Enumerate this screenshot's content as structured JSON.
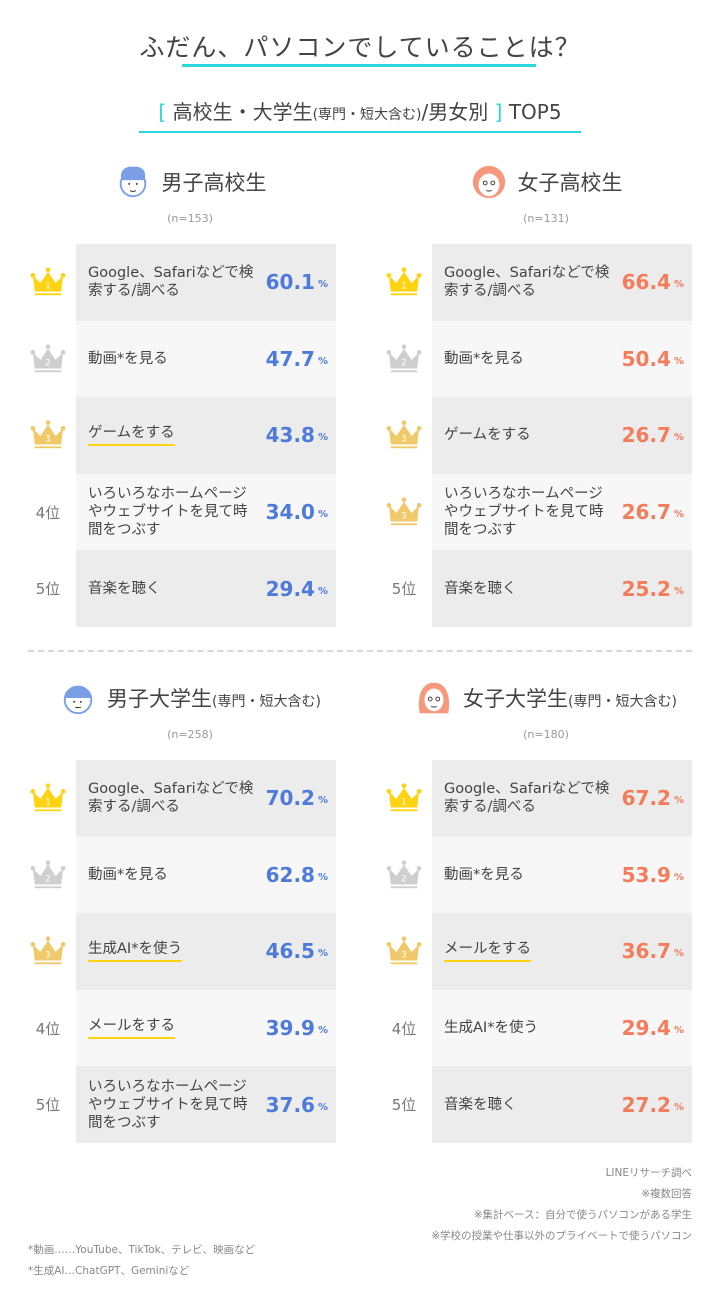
{
  "header": {
    "title": "ふだん、パソコンでしていることは？",
    "subtitle_open": "[",
    "subtitle_main": "高校生・大学生",
    "subtitle_small": "(専門・短大含む)",
    "subtitle_rest": "/男女別",
    "subtitle_close": "]",
    "subtitle_top": "TOP5"
  },
  "colors": {
    "accent_cyan": "#2ad7dc",
    "male_blue": "#4e7ad9",
    "female_orange": "#f47c5a",
    "gold": "#ffd30f",
    "silver": "#cfcfcf",
    "bronze": "#f0c96a",
    "row_dark": "#ececec",
    "row_light": "#f7f7f7"
  },
  "sections": [
    {
      "title": "男子高校生",
      "title_small": "",
      "n": "(n=153)",
      "avatar": "boy-avatar-icon",
      "color": "blue",
      "rows": [
        {
          "rank": "1",
          "rank_type": "crown-gold",
          "label": "Google、Safariなどで検索する/調べる",
          "value": "60.1",
          "underline": false
        },
        {
          "rank": "2",
          "rank_type": "crown-silver",
          "label": "動画*を見る",
          "value": "47.7",
          "underline": false
        },
        {
          "rank": "3",
          "rank_type": "crown-bronze",
          "label": "ゲームをする",
          "value": "43.8",
          "underline": true
        },
        {
          "rank": "4位",
          "rank_type": "text",
          "label": "いろいろなホームページやウェブサイトを見て時間をつぶす",
          "value": "34.0",
          "underline": false
        },
        {
          "rank": "5位",
          "rank_type": "text",
          "label": "音楽を聴く",
          "value": "29.4",
          "underline": false
        }
      ]
    },
    {
      "title": "女子高校生",
      "title_small": "",
      "n": "(n=131)",
      "avatar": "girl-avatar-icon",
      "color": "orange",
      "rows": [
        {
          "rank": "1",
          "rank_type": "crown-gold",
          "label": "Google、Safariなどで検索する/調べる",
          "value": "66.4",
          "underline": false
        },
        {
          "rank": "2",
          "rank_type": "crown-silver",
          "label": "動画*を見る",
          "value": "50.4",
          "underline": false
        },
        {
          "rank": "3",
          "rank_type": "crown-bronze",
          "label": "ゲームをする",
          "value": "26.7",
          "underline": false
        },
        {
          "rank": "3",
          "rank_type": "crown-bronze",
          "label": "いろいろなホームページやウェブサイトを見て時間をつぶす",
          "value": "26.7",
          "underline": false
        },
        {
          "rank": "5位",
          "rank_type": "text",
          "label": "音楽を聴く",
          "value": "25.2",
          "underline": false
        }
      ]
    },
    {
      "title": "男子大学生",
      "title_small": "(専門・短大含む)",
      "n": "(n=258)",
      "avatar": "male-student-avatar-icon",
      "color": "blue",
      "rows": [
        {
          "rank": "1",
          "rank_type": "crown-gold",
          "label": "Google、Safariなどで検索する/調べる",
          "value": "70.2",
          "underline": false
        },
        {
          "rank": "2",
          "rank_type": "crown-silver",
          "label": "動画*を見る",
          "value": "62.8",
          "underline": false
        },
        {
          "rank": "3",
          "rank_type": "crown-bronze",
          "label": "生成AI*を使う",
          "value": "46.5",
          "underline": true
        },
        {
          "rank": "4位",
          "rank_type": "text",
          "label": "メールをする",
          "value": "39.9",
          "underline": true
        },
        {
          "rank": "5位",
          "rank_type": "text",
          "label": "いろいろなホームページやウェブサイトを見て時間をつぶす",
          "value": "37.6",
          "underline": false
        }
      ]
    },
    {
      "title": "女子大学生",
      "title_small": "(専門・短大含む)",
      "n": "(n=180)",
      "avatar": "female-student-avatar-icon",
      "color": "orange",
      "rows": [
        {
          "rank": "1",
          "rank_type": "crown-gold",
          "label": "Google、Safariなどで検索する/調べる",
          "value": "67.2",
          "underline": false
        },
        {
          "rank": "2",
          "rank_type": "crown-silver",
          "label": "動画*を見る",
          "value": "53.9",
          "underline": false
        },
        {
          "rank": "3",
          "rank_type": "crown-bronze",
          "label": "メールをする",
          "value": "36.7",
          "underline": true
        },
        {
          "rank": "4位",
          "rank_type": "text",
          "label": "生成AI*を使う",
          "value": "29.4",
          "underline": false
        },
        {
          "rank": "5位",
          "rank_type": "text",
          "label": "音楽を聴く",
          "value": "27.2",
          "underline": false
        }
      ]
    }
  ],
  "percent_unit": "%",
  "notes_right": [
    "LINEリサーチ調べ",
    "※複数回答",
    "※集計ベース：自分で使うパソコンがある学生",
    "※学校の授業や仕事以外のプライベートで使うパソコン"
  ],
  "notes_left": [
    "*動画……YouTube、TikTok、テレビ、映画など",
    "*生成AI…ChatGPT、Geminiなど"
  ],
  "chart_data": [
    {
      "type": "table",
      "title": "男子高校生 (n=153)",
      "categories": [
        "Google、Safariなどで検索する/調べる",
        "動画*を見る",
        "ゲームをする",
        "いろいろなホームページやウェブサイトを見て時間をつぶす",
        "音楽を聴く"
      ],
      "ranks": [
        "1位",
        "2位",
        "3位",
        "4位",
        "5位"
      ],
      "values": [
        60.1,
        47.7,
        43.8,
        34.0,
        29.4
      ],
      "unit": "%"
    },
    {
      "type": "table",
      "title": "女子高校生 (n=131)",
      "categories": [
        "Google、Safariなどで検索する/調べる",
        "動画*を見る",
        "ゲームをする",
        "いろいろなホームページやウェブサイトを見て時間をつぶす",
        "音楽を聴く"
      ],
      "ranks": [
        "1位",
        "2位",
        "3位",
        "3位",
        "5位"
      ],
      "values": [
        66.4,
        50.4,
        26.7,
        26.7,
        25.2
      ],
      "unit": "%"
    },
    {
      "type": "table",
      "title": "男子大学生(専門・短大含む) (n=258)",
      "categories": [
        "Google、Safariなどで検索する/調べる",
        "動画*を見る",
        "生成AI*を使う",
        "メールをする",
        "いろいろなホームページやウェブサイトを見て時間をつぶす"
      ],
      "ranks": [
        "1位",
        "2位",
        "3位",
        "4位",
        "5位"
      ],
      "values": [
        70.2,
        62.8,
        46.5,
        39.9,
        37.6
      ],
      "unit": "%"
    },
    {
      "type": "table",
      "title": "女子大学生(専門・短大含む) (n=180)",
      "categories": [
        "Google、Safariなどで検索する/調べる",
        "動画*を見る",
        "メールをする",
        "生成AI*を使う",
        "音楽を聴く"
      ],
      "ranks": [
        "1位",
        "2位",
        "3位",
        "4位",
        "5位"
      ],
      "values": [
        67.2,
        53.9,
        36.7,
        29.4,
        27.2
      ],
      "unit": "%"
    }
  ]
}
